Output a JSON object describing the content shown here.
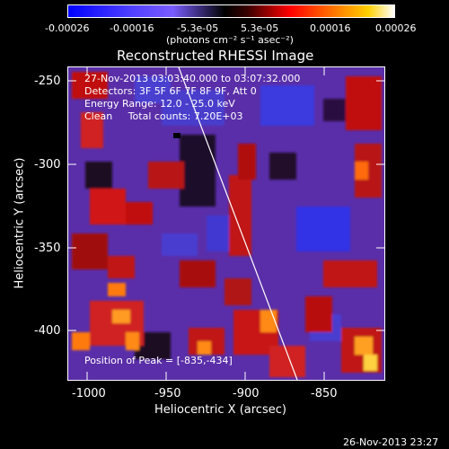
{
  "colorbar": {
    "tick_labels": [
      "-0.00026",
      "-0.00016",
      "-5.3e-05",
      "5.3e-05",
      "0.00016",
      "0.00026"
    ],
    "units_label": "(photons cm⁻² s⁻¹ asec⁻²)"
  },
  "plot": {
    "title": "Reconstructed RHESSI Image",
    "xlabel": "Heliocentric X (arcsec)",
    "ylabel": "Heliocentric Y (arcsec)",
    "x_ticks": [
      "-1000",
      "-950",
      "-900",
      "-850"
    ],
    "y_ticks": [
      "-250",
      "-300",
      "-350",
      "-400"
    ],
    "annotations": [
      "27-Nov-2013 03:03:40.000 to 03:07:32.000",
      "Detectors: 3F 5F 6F 7F 8F 9F, Att 0",
      "Energy Range: 12.0 - 25.0 keV",
      "Clean     Total counts: 7.20E+03"
    ],
    "peak_label": "Position of Peak = [-835,-434]"
  },
  "timestamp": "26-Nov-2013 23:27",
  "colors": {
    "frame": "#ffffff",
    "background": "#000000",
    "limb_line": "#ffffff"
  }
}
